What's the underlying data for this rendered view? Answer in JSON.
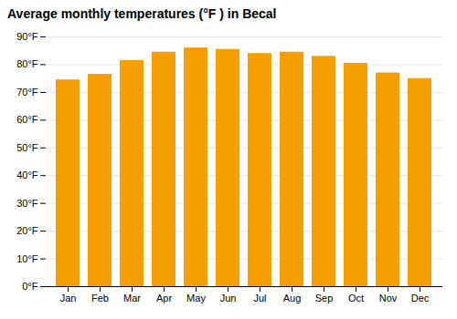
{
  "chart_data": {
    "type": "bar",
    "title": "Average monthly temperatures (°F ) in Becal",
    "categories": [
      "Jan",
      "Feb",
      "Mar",
      "Apr",
      "May",
      "Jun",
      "Jul",
      "Aug",
      "Sep",
      "Oct",
      "Nov",
      "Dec"
    ],
    "values": [
      74.5,
      76.5,
      81.5,
      84.5,
      86.0,
      85.5,
      84.0,
      84.5,
      83.0,
      80.5,
      77.0,
      75.0
    ],
    "color": "#F5A000",
    "ylim": [
      0,
      90
    ],
    "yticks": [
      {
        "value": 0,
        "label": "0°F"
      },
      {
        "value": 10,
        "label": "10°F"
      },
      {
        "value": 20,
        "label": "20°F"
      },
      {
        "value": 30,
        "label": "30°F"
      },
      {
        "value": 40,
        "label": "40°F"
      },
      {
        "value": 50,
        "label": "50°F"
      },
      {
        "value": 60,
        "label": "60°F"
      },
      {
        "value": 70,
        "label": "70°F"
      },
      {
        "value": 80,
        "label": "80°F"
      },
      {
        "value": 90,
        "label": "90°F"
      }
    ],
    "grid": true
  }
}
